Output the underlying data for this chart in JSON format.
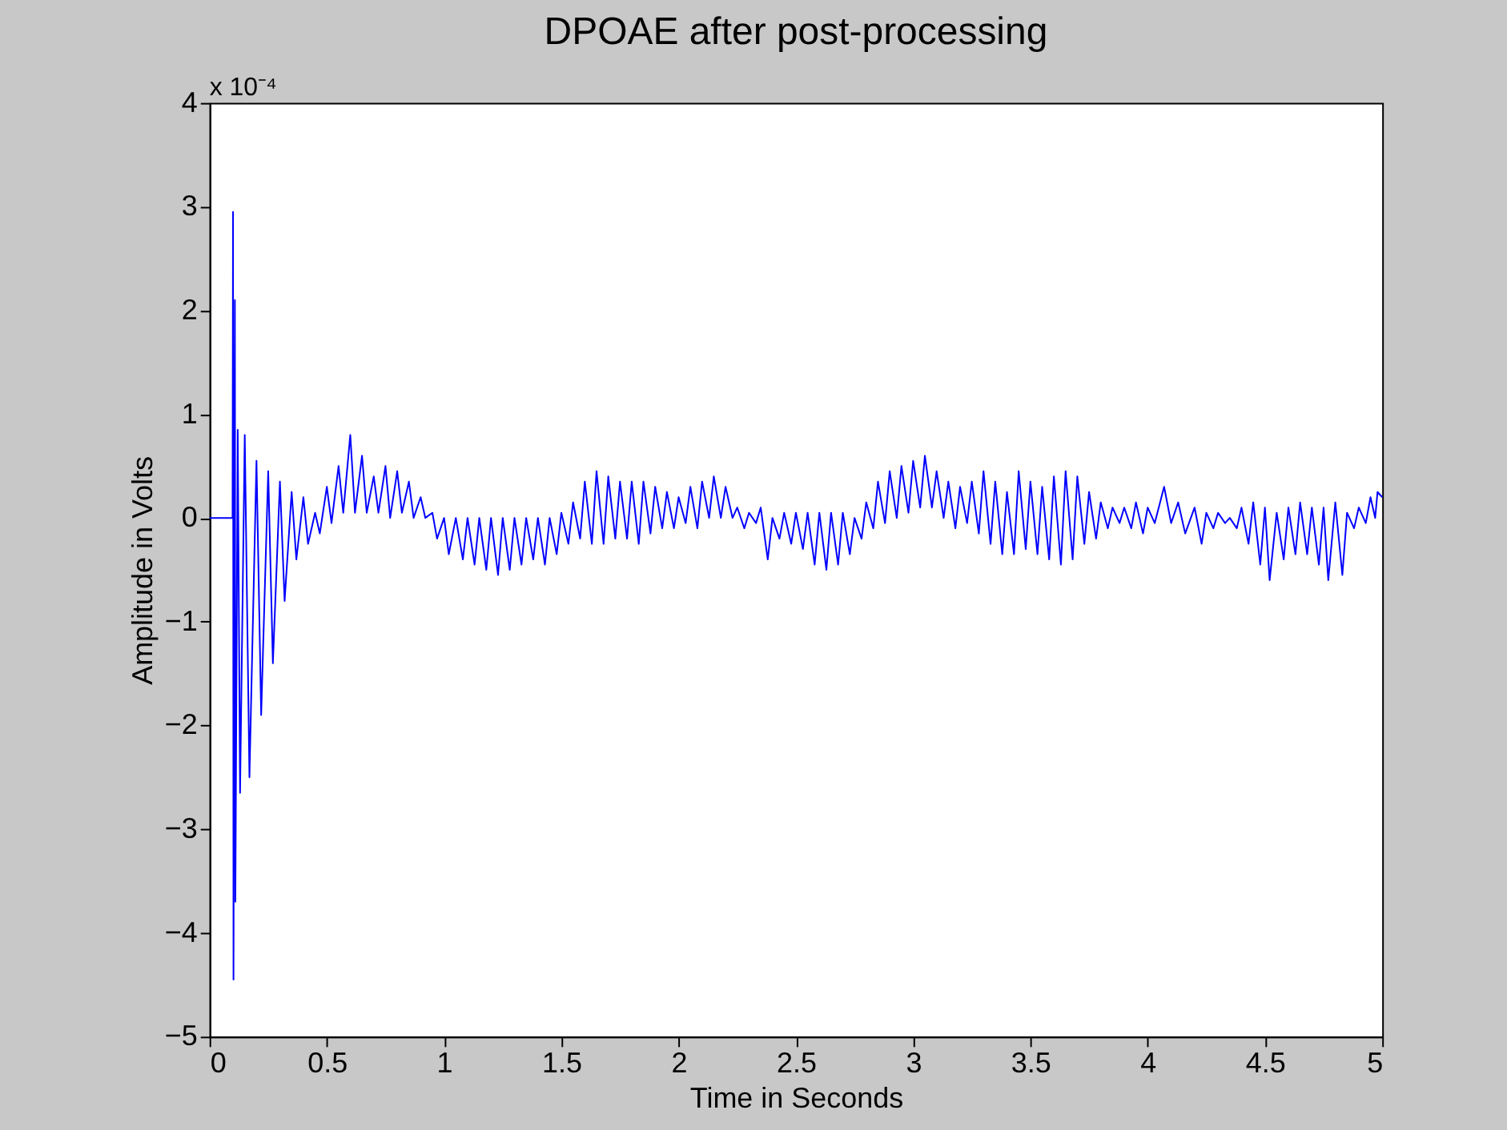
{
  "chart_data": {
    "type": "line",
    "title": "DPOAE after post-processing",
    "xlabel": "Time in Seconds",
    "ylabel": "Amplitude in Volts",
    "annotations": [
      "x 10⁻⁴"
    ],
    "x": [
      0,
      0.098,
      0.1,
      0.102,
      0.108,
      0.11,
      0.12,
      0.13,
      0.15,
      0.17,
      0.2,
      0.22,
      0.25,
      0.27,
      0.3,
      0.32,
      0.35,
      0.37,
      0.4,
      0.42,
      0.45,
      0.47,
      0.5,
      0.52,
      0.55,
      0.57,
      0.6,
      0.62,
      0.65,
      0.67,
      0.7,
      0.72,
      0.75,
      0.77,
      0.8,
      0.82,
      0.85,
      0.87,
      0.9,
      0.92,
      0.95,
      0.97,
      1.0,
      1.02,
      1.05,
      1.08,
      1.1,
      1.13,
      1.15,
      1.18,
      1.2,
      1.23,
      1.25,
      1.28,
      1.3,
      1.33,
      1.35,
      1.38,
      1.4,
      1.43,
      1.45,
      1.48,
      1.5,
      1.53,
      1.55,
      1.58,
      1.6,
      1.63,
      1.65,
      1.68,
      1.7,
      1.73,
      1.75,
      1.78,
      1.8,
      1.83,
      1.85,
      1.88,
      1.9,
      1.93,
      1.95,
      1.98,
      2.0,
      2.03,
      2.05,
      2.08,
      2.1,
      2.13,
      2.15,
      2.18,
      2.2,
      2.23,
      2.25,
      2.28,
      2.3,
      2.33,
      2.35,
      2.38,
      2.4,
      2.43,
      2.45,
      2.48,
      2.5,
      2.53,
      2.55,
      2.58,
      2.6,
      2.63,
      2.65,
      2.68,
      2.7,
      2.73,
      2.75,
      2.78,
      2.8,
      2.83,
      2.85,
      2.88,
      2.9,
      2.93,
      2.95,
      2.98,
      3.0,
      3.03,
      3.05,
      3.08,
      3.1,
      3.13,
      3.15,
      3.18,
      3.2,
      3.23,
      3.25,
      3.28,
      3.3,
      3.33,
      3.35,
      3.38,
      3.4,
      3.43,
      3.45,
      3.48,
      3.5,
      3.53,
      3.55,
      3.58,
      3.6,
      3.63,
      3.65,
      3.68,
      3.7,
      3.73,
      3.75,
      3.78,
      3.8,
      3.83,
      3.85,
      3.88,
      3.9,
      3.93,
      3.95,
      3.98,
      4.0,
      4.03,
      4.07,
      4.1,
      4.13,
      4.16,
      4.2,
      4.23,
      4.25,
      4.28,
      4.3,
      4.33,
      4.35,
      4.38,
      4.4,
      4.43,
      4.45,
      4.48,
      4.5,
      4.52,
      4.55,
      4.58,
      4.6,
      4.63,
      4.65,
      4.68,
      4.7,
      4.73,
      4.75,
      4.77,
      4.8,
      4.83,
      4.85,
      4.88,
      4.9,
      4.93,
      4.95,
      4.97,
      4.98,
      5.0
    ],
    "series": [
      {
        "color": "#0000ff",
        "values": [
          0,
          0,
          2.95,
          -4.45,
          2.1,
          -3.7,
          0.85,
          -2.65,
          0.8,
          -2.5,
          0.55,
          -1.9,
          0.45,
          -1.4,
          0.35,
          -0.8,
          0.25,
          -0.4,
          0.2,
          -0.25,
          0.05,
          -0.15,
          0.3,
          -0.05,
          0.5,
          0.05,
          0.8,
          0.05,
          0.6,
          0.05,
          0.4,
          0.05,
          0.5,
          0.0,
          0.45,
          0.05,
          0.35,
          0.0,
          0.2,
          0.0,
          0.05,
          -0.2,
          0.0,
          -0.35,
          0.0,
          -0.4,
          0.0,
          -0.45,
          0.0,
          -0.5,
          0.0,
          -0.55,
          0.0,
          -0.5,
          0.0,
          -0.45,
          0.0,
          -0.4,
          0.0,
          -0.45,
          0.0,
          -0.35,
          0.05,
          -0.25,
          0.15,
          -0.2,
          0.35,
          -0.25,
          0.45,
          -0.25,
          0.4,
          -0.2,
          0.35,
          -0.2,
          0.35,
          -0.25,
          0.35,
          -0.15,
          0.3,
          -0.1,
          0.25,
          -0.1,
          0.2,
          -0.05,
          0.3,
          -0.1,
          0.35,
          0.0,
          0.4,
          0.0,
          0.3,
          0.0,
          0.1,
          -0.1,
          0.05,
          -0.05,
          0.1,
          -0.4,
          0.0,
          -0.2,
          0.05,
          -0.25,
          0.05,
          -0.3,
          0.05,
          -0.45,
          0.05,
          -0.5,
          0.05,
          -0.45,
          0.05,
          -0.35,
          0.0,
          -0.2,
          0.15,
          -0.1,
          0.35,
          -0.05,
          0.45,
          0.0,
          0.5,
          0.05,
          0.55,
          0.1,
          0.6,
          0.1,
          0.45,
          0.0,
          0.35,
          -0.1,
          0.3,
          -0.05,
          0.35,
          -0.15,
          0.45,
          -0.25,
          0.35,
          -0.35,
          0.25,
          -0.35,
          0.45,
          -0.3,
          0.35,
          -0.35,
          0.3,
          -0.4,
          0.4,
          -0.45,
          0.45,
          -0.4,
          0.4,
          -0.25,
          0.25,
          -0.2,
          0.15,
          -0.1,
          0.1,
          -0.05,
          0.1,
          -0.1,
          0.15,
          -0.15,
          0.1,
          -0.05,
          0.3,
          -0.05,
          0.15,
          -0.15,
          0.1,
          -0.25,
          0.05,
          -0.1,
          0.05,
          -0.05,
          0.0,
          -0.1,
          0.1,
          -0.25,
          0.15,
          -0.45,
          0.1,
          -0.6,
          0.05,
          -0.4,
          0.1,
          -0.35,
          0.15,
          -0.35,
          0.1,
          -0.45,
          0.1,
          -0.6,
          0.15,
          -0.55,
          0.05,
          -0.1,
          0.1,
          -0.05,
          0.2,
          0.0,
          0.25,
          0.2
        ]
      }
    ],
    "xlim": [
      0,
      5
    ],
    "xticks": [
      0,
      0.5,
      1,
      1.5,
      2,
      2.5,
      3,
      3.5,
      4,
      4.5,
      5
    ],
    "ylim": [
      -5,
      4
    ],
    "yticks": [
      -5,
      -4,
      -3,
      -2,
      -1,
      0,
      1,
      2,
      3,
      4
    ],
    "grid": false,
    "line_style": "solid",
    "marker": "none"
  }
}
